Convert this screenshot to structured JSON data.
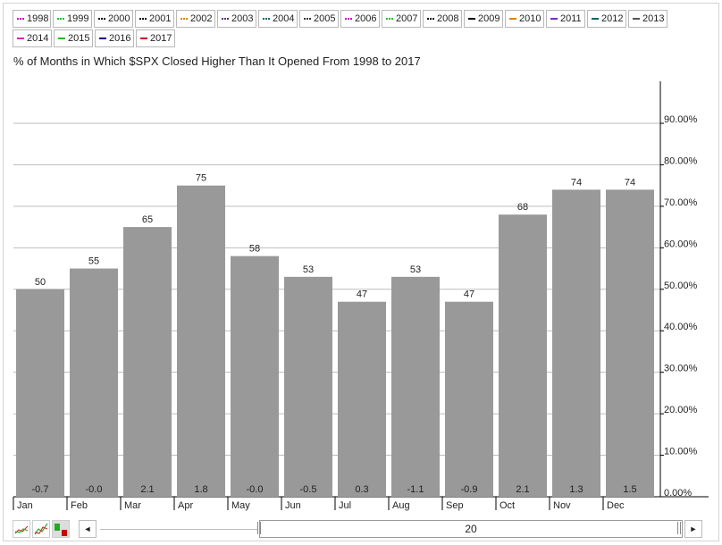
{
  "legend": {
    "items": [
      {
        "label": "1998",
        "color": "#c000c0",
        "style": "dotted"
      },
      {
        "label": "1999",
        "color": "#22bb22",
        "style": "dotted"
      },
      {
        "label": "2000",
        "color": "#000000",
        "style": "dotted"
      },
      {
        "label": "2001",
        "color": "#000000",
        "style": "dotted"
      },
      {
        "label": "2002",
        "color": "#e08000",
        "style": "dotted"
      },
      {
        "label": "2003",
        "color": "#5a2a82",
        "style": "dotted"
      },
      {
        "label": "2004",
        "color": "#006666",
        "style": "dotted"
      },
      {
        "label": "2005",
        "color": "#333333",
        "style": "dotted"
      },
      {
        "label": "2006",
        "color": "#c000c0",
        "style": "dotted"
      },
      {
        "label": "2007",
        "color": "#22bb22",
        "style": "dotted"
      },
      {
        "label": "2008",
        "color": "#000000",
        "style": "dotted"
      },
      {
        "label": "2009",
        "color": "#000000",
        "style": "solid"
      },
      {
        "label": "2010",
        "color": "#e08000",
        "style": "solid"
      },
      {
        "label": "2011",
        "color": "#7a2ac2",
        "style": "solid"
      },
      {
        "label": "2012",
        "color": "#006666",
        "style": "solid"
      },
      {
        "label": "2013",
        "color": "#555555",
        "style": "solid"
      },
      {
        "label": "2014",
        "color": "#e020c0",
        "style": "solid"
      },
      {
        "label": "2015",
        "color": "#22bb22",
        "style": "solid"
      },
      {
        "label": "2016",
        "color": "#000080",
        "style": "solid"
      },
      {
        "label": "2017",
        "color": "#cc0000",
        "style": "solid"
      }
    ]
  },
  "chart_data": {
    "type": "bar",
    "title": "% of Months in Which $SPX Closed Higher Than It Opened From 1998 to 2017",
    "categories": [
      "Jan",
      "Feb",
      "Mar",
      "Apr",
      "May",
      "Jun",
      "Jul",
      "Aug",
      "Sep",
      "Oct",
      "Nov",
      "Dec"
    ],
    "values": [
      50,
      55,
      65,
      75,
      58,
      53,
      47,
      53,
      47,
      68,
      74,
      74
    ],
    "bottom_labels": [
      "-0.7",
      "-0.0",
      "2.1",
      "1.8",
      "-0.0",
      "-0.5",
      "0.3",
      "-1.1",
      "-0.9",
      "2.1",
      "1.3",
      "1.5"
    ],
    "y_ticks": [
      "0.00%",
      "10.00%",
      "20.00%",
      "30.00%",
      "40.00%",
      "50.00%",
      "60.00%",
      "70.00%",
      "80.00%",
      "90.00%"
    ],
    "ylim": [
      0,
      100
    ],
    "y_axis_side": "right",
    "grid": true,
    "bar_color": "#999999"
  },
  "navigator": {
    "range_label": "20",
    "left_arrow": "◄",
    "right_arrow": "►"
  }
}
